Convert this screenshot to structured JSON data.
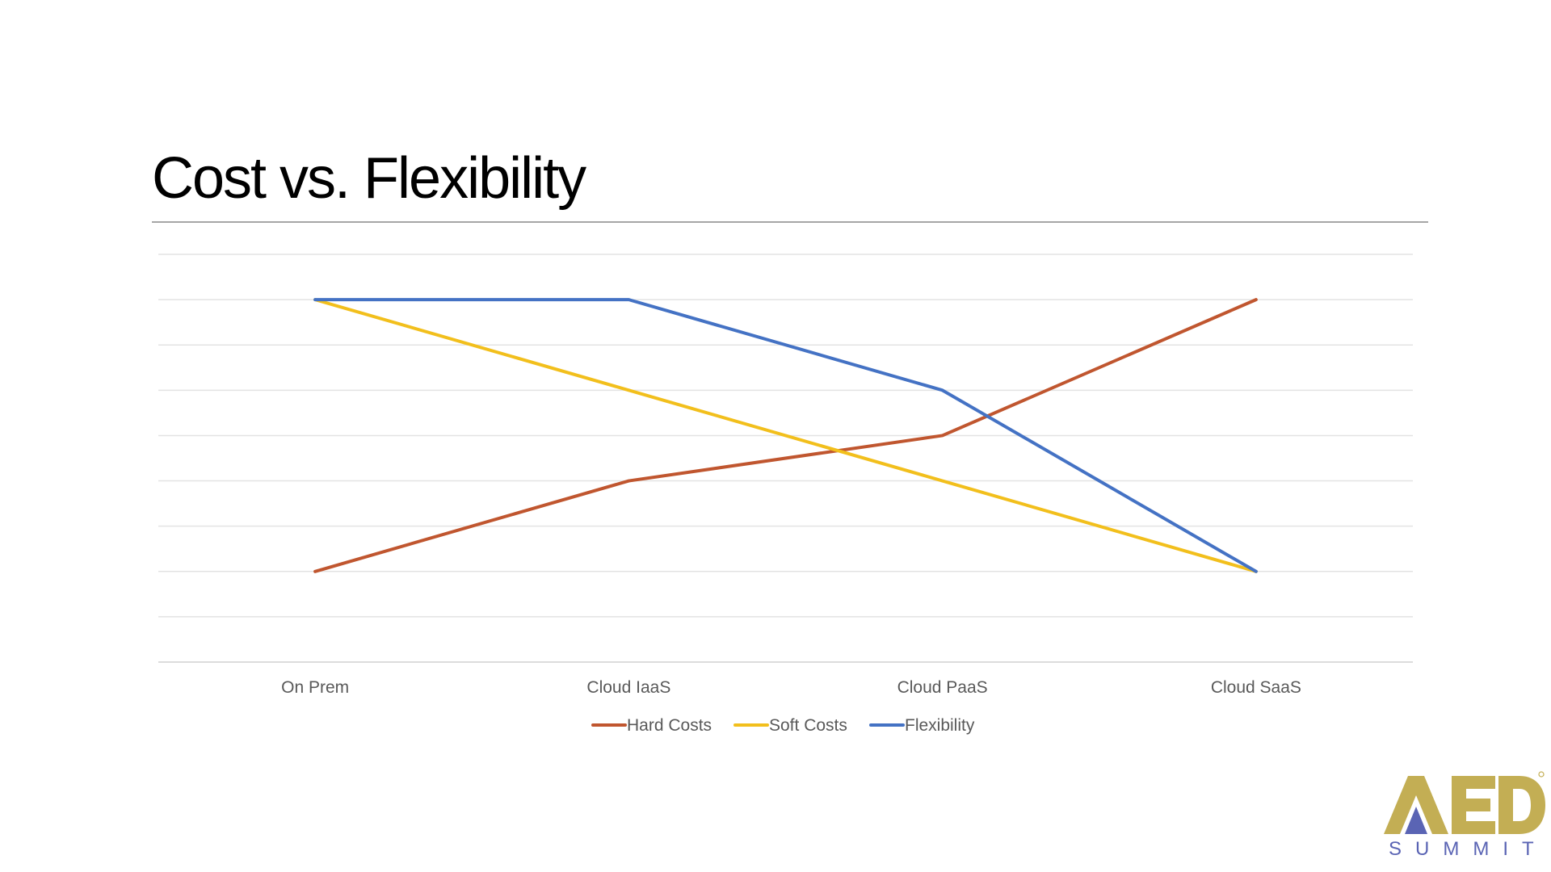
{
  "slide": {
    "title": "Cost vs. Flexibility"
  },
  "logo": {
    "brand": "AED",
    "subtitle": "SUMMIT",
    "gold": "#c3ae54",
    "blue": "#5a64b4"
  },
  "chart_data": {
    "type": "line",
    "title": "",
    "xlabel": "",
    "ylabel": "",
    "categories": [
      "On Prem",
      "Cloud IaaS",
      "Cloud PaaS",
      "Cloud SaaS"
    ],
    "ylim": [
      0,
      9
    ],
    "gridlines": true,
    "y_axis_labels": false,
    "legend_position": "bottom",
    "series": [
      {
        "name": "Hard Costs",
        "values": [
          2,
          4,
          5,
          8
        ],
        "color": "#c0562f"
      },
      {
        "name": "Soft Costs",
        "values": [
          8,
          6,
          4,
          2
        ],
        "color": "#f2bf1c"
      },
      {
        "name": "Flexibility",
        "values": [
          8,
          8,
          6,
          2
        ],
        "color": "#4472c4"
      }
    ]
  }
}
